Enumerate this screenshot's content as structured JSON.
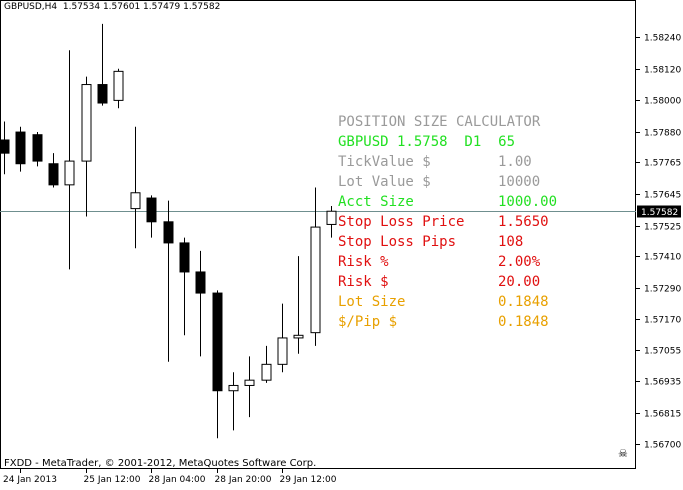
{
  "header": {
    "symbol_info": "GBPUSD,H4  1.57534 1.57601 1.57479 1.57582"
  },
  "footer": {
    "copyright": "FXDD - MetaTrader, © 2001-2012, MetaQuotes Software Corp."
  },
  "calculator": {
    "title": "POSITION SIZE CALCULATOR",
    "rows": [
      {
        "label": "GBPUSD 1.5758  D1  65",
        "value": "",
        "color": "#22e022"
      },
      {
        "label": "TickValue $",
        "value": "1.00",
        "color": "#9a9a9a"
      },
      {
        "label": "Lot Value $",
        "value": "10000",
        "color": "#9a9a9a"
      },
      {
        "label": "Acct Size",
        "value": "1000.00",
        "color": "#22e022"
      },
      {
        "label": "Stop Loss Price",
        "value": "1.5650",
        "color": "#e01010"
      },
      {
        "label": "Stop Loss Pips",
        "value": "108",
        "color": "#e01010"
      },
      {
        "label": "Risk %",
        "value": "2.00%",
        "color": "#e01010"
      },
      {
        "label": "Risk $",
        "value": "20.00",
        "color": "#e01010"
      },
      {
        "label": "Lot Size",
        "value": "0.1848",
        "color": "#e8a000"
      },
      {
        "label": "$/Pip $",
        "value": "0.1848",
        "color": "#e8a000"
      }
    ]
  },
  "colors": {
    "bull": "#ffffff",
    "bear": "#000000",
    "price_line": "#6f8f8f",
    "price_tag": "#000000"
  },
  "chart_data": {
    "type": "candlestick",
    "symbol": "GBPUSD",
    "timeframe": "H4",
    "current_price": 1.57582,
    "current_price_label": "1.57582",
    "ylim": [
      1.5663,
      1.5835
    ],
    "y_ticks": [
      "1.58240",
      "1.58120",
      "1.58000",
      "1.57880",
      "1.57765",
      "1.57645",
      "1.57525",
      "1.57410",
      "1.57290",
      "1.57170",
      "1.57055",
      "1.56935",
      "1.56815",
      "1.56700"
    ],
    "y_tick_values": [
      1.5824,
      1.5812,
      1.58,
      1.5788,
      1.57765,
      1.57645,
      1.57525,
      1.5741,
      1.5729,
      1.5717,
      1.57055,
      1.56935,
      1.56815,
      1.567
    ],
    "x_labels": [
      {
        "label": "24 Jan 2013",
        "index": 1
      },
      {
        "label": "25 Jan 12:00",
        "index": 5
      },
      {
        "label": "28 Jan 04:00",
        "index": 9
      },
      {
        "label": "28 Jan 20:00",
        "index": 13
      },
      {
        "label": "29 Jan 12:00",
        "index": 17
      }
    ],
    "candles": [
      {
        "o": 1.5785,
        "h": 1.5792,
        "l": 1.5772,
        "c": 1.578
      },
      {
        "o": 1.5788,
        "h": 1.579,
        "l": 1.5773,
        "c": 1.5776
      },
      {
        "o": 1.5787,
        "h": 1.5788,
        "l": 1.5775,
        "c": 1.5777
      },
      {
        "o": 1.5776,
        "h": 1.578,
        "l": 1.5767,
        "c": 1.5768
      },
      {
        "o": 1.5768,
        "h": 1.5819,
        "l": 1.5736,
        "c": 1.5777
      },
      {
        "o": 1.5777,
        "h": 1.5809,
        "l": 1.5756,
        "c": 1.5806
      },
      {
        "o": 1.5806,
        "h": 1.5829,
        "l": 1.5798,
        "c": 1.5799
      },
      {
        "o": 1.58,
        "h": 1.5812,
        "l": 1.5797,
        "c": 1.5811
      },
      {
        "o": 1.5759,
        "h": 1.579,
        "l": 1.5744,
        "c": 1.5765
      },
      {
        "o": 1.5763,
        "h": 1.5764,
        "l": 1.5748,
        "c": 1.5754
      },
      {
        "o": 1.5754,
        "h": 1.5762,
        "l": 1.5701,
        "c": 1.5746
      },
      {
        "o": 1.5746,
        "h": 1.5748,
        "l": 1.5711,
        "c": 1.5735
      },
      {
        "o": 1.5735,
        "h": 1.5743,
        "l": 1.5703,
        "c": 1.5727
      },
      {
        "o": 1.5727,
        "h": 1.5728,
        "l": 1.5672,
        "c": 1.569
      },
      {
        "o": 1.569,
        "h": 1.5697,
        "l": 1.5675,
        "c": 1.5692
      },
      {
        "o": 1.5692,
        "h": 1.5703,
        "l": 1.568,
        "c": 1.5694
      },
      {
        "o": 1.5694,
        "h": 1.5707,
        "l": 1.5693,
        "c": 1.57
      },
      {
        "o": 1.57,
        "h": 1.5723,
        "l": 1.5697,
        "c": 1.571
      },
      {
        "o": 1.571,
        "h": 1.5741,
        "l": 1.5704,
        "c": 1.5711
      },
      {
        "o": 1.5712,
        "h": 1.5767,
        "l": 1.5707,
        "c": 1.5752
      },
      {
        "o": 1.5753,
        "h": 1.576,
        "l": 1.5748,
        "c": 1.5758
      }
    ]
  }
}
